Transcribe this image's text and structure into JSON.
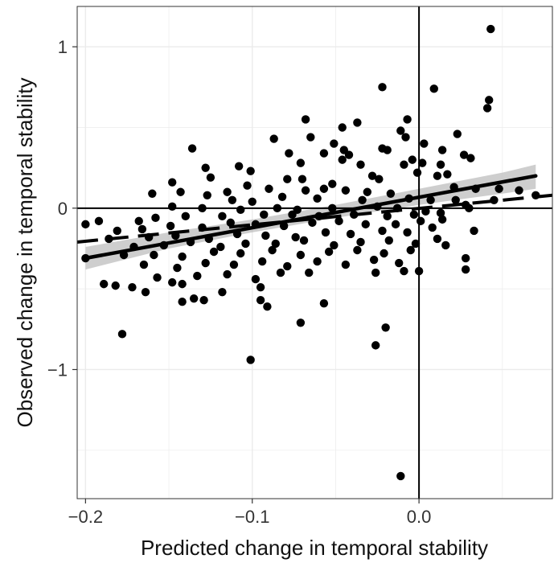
{
  "chart_data": {
    "type": "scatter",
    "title": "",
    "xlabel": "Predicted change in temporal stability",
    "ylabel": "Observed change in temporal stability",
    "xlim": [
      -0.205,
      0.08
    ],
    "ylim": [
      -1.8,
      1.25
    ],
    "x_ticks": [
      -0.2,
      -0.1,
      0.0
    ],
    "x_tick_labels": [
      "−0.2",
      "−0.1",
      "0.0"
    ],
    "y_ticks": [
      -1,
      0,
      1
    ],
    "y_tick_labels": [
      "−1",
      "0",
      "1"
    ],
    "grid": true,
    "background": "#ffffff",
    "grid_color": "#ebebeb",
    "point_color": "#000000",
    "reference_lines": {
      "x": 0,
      "y": 0
    },
    "fit_line": {
      "x": [
        -0.2,
        0.07
      ],
      "y": [
        -0.31,
        0.2
      ],
      "style": "solid"
    },
    "fit_band": {
      "x": [
        -0.2,
        -0.15,
        -0.1,
        -0.05,
        0.0,
        0.05,
        0.07
      ],
      "lower": [
        -0.38,
        -0.25,
        -0.15,
        -0.06,
        0.02,
        0.09,
        0.12
      ],
      "upper": [
        -0.24,
        -0.15,
        -0.07,
        0.02,
        0.12,
        0.22,
        0.27
      ]
    },
    "dashed_line": {
      "x": [
        -0.205,
        0.08
      ],
      "y": [
        -0.21,
        0.08
      ],
      "style": "dashed"
    },
    "points": [
      [
        0.043,
        1.11
      ],
      [
        -0.022,
        0.75
      ],
      [
        0.009,
        0.74
      ],
      [
        0.042,
        0.67
      ],
      [
        0.041,
        0.62
      ],
      [
        -0.007,
        0.55
      ],
      [
        -0.068,
        0.55
      ],
      [
        -0.037,
        0.53
      ],
      [
        -0.046,
        0.5
      ],
      [
        -0.011,
        0.48
      ],
      [
        -0.008,
        0.44
      ],
      [
        -0.065,
        0.44
      ],
      [
        -0.087,
        0.43
      ],
      [
        0.023,
        0.46
      ],
      [
        0.003,
        0.4
      ],
      [
        -0.051,
        0.4
      ],
      [
        -0.022,
        0.37
      ],
      [
        -0.045,
        0.36
      ],
      [
        -0.019,
        0.36
      ],
      [
        0.014,
        0.36
      ],
      [
        -0.136,
        0.37
      ],
      [
        -0.078,
        0.34
      ],
      [
        -0.057,
        0.34
      ],
      [
        -0.042,
        0.33
      ],
      [
        0.027,
        0.33
      ],
      [
        -0.046,
        0.3
      ],
      [
        -0.004,
        0.3
      ],
      [
        0.031,
        0.31
      ],
      [
        -0.128,
        0.25
      ],
      [
        -0.108,
        0.26
      ],
      [
        -0.101,
        0.23
      ],
      [
        -0.125,
        0.19
      ],
      [
        -0.071,
        0.28
      ],
      [
        -0.035,
        0.27
      ],
      [
        -0.009,
        0.27
      ],
      [
        0.002,
        0.28
      ],
      [
        0.013,
        0.27
      ],
      [
        -0.148,
        0.16
      ],
      [
        -0.103,
        0.14
      ],
      [
        -0.079,
        0.18
      ],
      [
        -0.07,
        0.18
      ],
      [
        -0.052,
        0.15
      ],
      [
        -0.028,
        0.2
      ],
      [
        -0.024,
        0.18
      ],
      [
        -0.001,
        0.22
      ],
      [
        0.011,
        0.2
      ],
      [
        0.017,
        0.21
      ],
      [
        -0.143,
        0.1
      ],
      [
        -0.127,
        0.08
      ],
      [
        -0.115,
        0.1
      ],
      [
        -0.09,
        0.12
      ],
      [
        -0.068,
        0.11
      ],
      [
        -0.057,
        0.12
      ],
      [
        -0.044,
        0.11
      ],
      [
        -0.031,
        0.1
      ],
      [
        -0.017,
        0.09
      ],
      [
        0.021,
        0.13
      ],
      [
        0.034,
        0.12
      ],
      [
        0.048,
        0.12
      ],
      [
        -0.16,
        0.09
      ],
      [
        -0.112,
        0.05
      ],
      [
        -0.1,
        0.04
      ],
      [
        -0.082,
        0.07
      ],
      [
        -0.061,
        0.06
      ],
      [
        -0.034,
        0.05
      ],
      [
        -0.006,
        0.06
      ],
      [
        0.007,
        0.05
      ],
      [
        0.022,
        0.05
      ],
      [
        0.06,
        0.11
      ],
      [
        0.07,
        0.08
      ],
      [
        -0.148,
        0.01
      ],
      [
        -0.13,
        0.0
      ],
      [
        -0.107,
        -0.01
      ],
      [
        -0.085,
        0.0
      ],
      [
        -0.073,
        -0.01
      ],
      [
        -0.052,
        0.0
      ],
      [
        -0.025,
        0.01
      ],
      [
        -0.013,
        0.0
      ],
      [
        0.004,
        -0.02
      ],
      [
        0.028,
        0.02
      ],
      [
        0.045,
        0.05
      ],
      [
        -0.192,
        -0.08
      ],
      [
        -0.168,
        -0.08
      ],
      [
        -0.158,
        -0.06
      ],
      [
        -0.14,
        -0.05
      ],
      [
        -0.118,
        -0.05
      ],
      [
        -0.093,
        -0.04
      ],
      [
        -0.076,
        -0.04
      ],
      [
        -0.06,
        -0.05
      ],
      [
        -0.039,
        -0.04
      ],
      [
        -0.019,
        -0.05
      ],
      [
        -0.003,
        -0.04
      ],
      [
        0.013,
        -0.03
      ],
      [
        0.03,
        0.0
      ],
      [
        -0.2,
        -0.1
      ],
      [
        -0.181,
        -0.14
      ],
      [
        -0.166,
        -0.13
      ],
      [
        -0.149,
        -0.11
      ],
      [
        -0.13,
        -0.12
      ],
      [
        -0.113,
        -0.09
      ],
      [
        -0.098,
        -0.1
      ],
      [
        -0.081,
        -0.11
      ],
      [
        -0.064,
        -0.09
      ],
      [
        -0.048,
        -0.08
      ],
      [
        -0.032,
        -0.1
      ],
      [
        -0.014,
        -0.1
      ],
      [
        0.001,
        -0.08
      ],
      [
        0.014,
        -0.07
      ],
      [
        -0.186,
        -0.19
      ],
      [
        -0.162,
        -0.18
      ],
      [
        -0.146,
        -0.17
      ],
      [
        -0.126,
        -0.19
      ],
      [
        -0.109,
        -0.16
      ],
      [
        -0.092,
        -0.17
      ],
      [
        -0.074,
        -0.18
      ],
      [
        -0.056,
        -0.15
      ],
      [
        -0.041,
        -0.16
      ],
      [
        -0.022,
        -0.14
      ],
      [
        -0.007,
        -0.15
      ],
      [
        0.008,
        -0.12
      ],
      [
        -0.171,
        -0.24
      ],
      [
        -0.153,
        -0.23
      ],
      [
        -0.137,
        -0.21
      ],
      [
        -0.119,
        -0.24
      ],
      [
        -0.104,
        -0.22
      ],
      [
        -0.086,
        -0.22
      ],
      [
        -0.069,
        -0.2
      ],
      [
        -0.051,
        -0.23
      ],
      [
        -0.035,
        -0.21
      ],
      [
        -0.018,
        -0.2
      ],
      [
        -0.002,
        -0.22
      ],
      [
        0.011,
        -0.19
      ],
      [
        -0.2,
        -0.31
      ],
      [
        -0.177,
        -0.29
      ],
      [
        -0.159,
        -0.29
      ],
      [
        -0.142,
        -0.3
      ],
      [
        -0.123,
        -0.27
      ],
      [
        -0.107,
        -0.28
      ],
      [
        -0.088,
        -0.26
      ],
      [
        -0.071,
        -0.29
      ],
      [
        -0.054,
        -0.27
      ],
      [
        -0.037,
        -0.26
      ],
      [
        -0.021,
        -0.28
      ],
      [
        -0.005,
        -0.26
      ],
      [
        0.016,
        -0.23
      ],
      [
        -0.165,
        -0.35
      ],
      [
        -0.145,
        -0.37
      ],
      [
        -0.128,
        -0.34
      ],
      [
        -0.111,
        -0.35
      ],
      [
        -0.094,
        -0.33
      ],
      [
        -0.079,
        -0.36
      ],
      [
        -0.061,
        -0.33
      ],
      [
        -0.044,
        -0.35
      ],
      [
        -0.027,
        -0.32
      ],
      [
        -0.012,
        -0.34
      ],
      [
        0.028,
        -0.31
      ],
      [
        -0.157,
        -0.43
      ],
      [
        -0.133,
        -0.42
      ],
      [
        -0.115,
        -0.41
      ],
      [
        -0.098,
        -0.44
      ],
      [
        -0.083,
        -0.4
      ],
      [
        -0.066,
        -0.4
      ],
      [
        -0.026,
        -0.4
      ],
      [
        -0.009,
        -0.39
      ],
      [
        0.0,
        -0.39
      ],
      [
        0.028,
        -0.38
      ],
      [
        -0.189,
        -0.47
      ],
      [
        -0.182,
        -0.48
      ],
      [
        -0.172,
        -0.49
      ],
      [
        -0.164,
        -0.52
      ],
      [
        -0.148,
        -0.46
      ],
      [
        -0.142,
        -0.47
      ],
      [
        -0.142,
        -0.58
      ],
      [
        -0.135,
        -0.56
      ],
      [
        -0.129,
        -0.57
      ],
      [
        -0.118,
        -0.52
      ],
      [
        -0.095,
        -0.49
      ],
      [
        -0.095,
        -0.57
      ],
      [
        -0.091,
        -0.61
      ],
      [
        -0.071,
        -0.71
      ],
      [
        -0.057,
        -0.59
      ],
      [
        -0.02,
        -0.74
      ],
      [
        -0.026,
        -0.85
      ],
      [
        -0.178,
        -0.78
      ],
      [
        -0.101,
        -0.94
      ],
      [
        0.033,
        -0.14
      ],
      [
        -0.011,
        -1.66
      ]
    ]
  }
}
